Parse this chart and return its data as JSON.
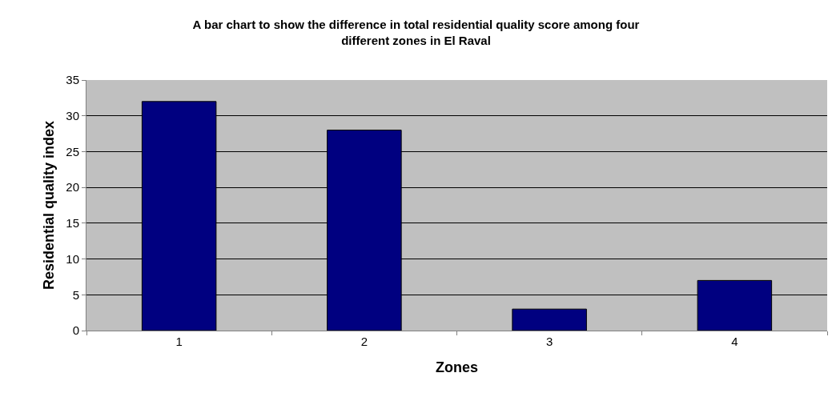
{
  "chart_data": {
    "type": "bar",
    "title": "A bar chart to show the difference in total residential quality score among four different zones in El Raval",
    "xlabel": "Zones",
    "ylabel": "Residential quality index",
    "categories": [
      "1",
      "2",
      "3",
      "4"
    ],
    "values": [
      32,
      28,
      3,
      7
    ],
    "color": "#000080",
    "ylim": [
      0,
      35
    ],
    "yticks": [
      0,
      5,
      10,
      15,
      20,
      25,
      30,
      35
    ],
    "grid": "y",
    "legend": false
  }
}
